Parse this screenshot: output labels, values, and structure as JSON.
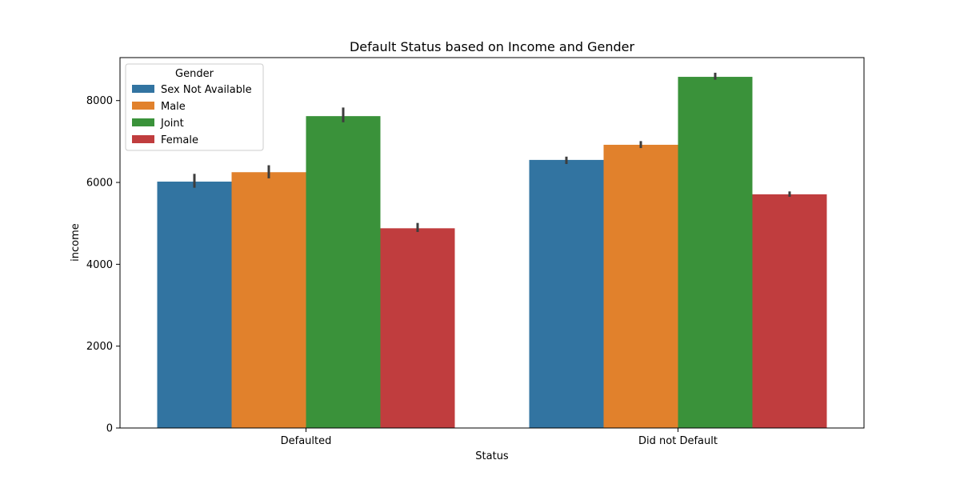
{
  "chart_data": {
    "type": "bar",
    "title": "Default Status based on Income and Gender",
    "xlabel": "Status",
    "ylabel": "income",
    "categories": [
      "Defaulted",
      "Did not Default"
    ],
    "ylim": [
      0,
      9050
    ],
    "yticks": [
      0,
      2000,
      4000,
      6000,
      8000
    ],
    "ytick_labels": [
      "0",
      "2000",
      "4000",
      "6000",
      "8000"
    ],
    "legend": {
      "title": "Gender",
      "placement": "top-left"
    },
    "series": [
      {
        "name": "Sex Not Available",
        "color": "#3274a1",
        "values": [
          6020,
          6550
        ],
        "ci_low": [
          5870,
          6450
        ],
        "ci_high": [
          6210,
          6630
        ]
      },
      {
        "name": "Male",
        "color": "#e1812c",
        "values": [
          6250,
          6920
        ],
        "ci_low": [
          6100,
          6840
        ],
        "ci_high": [
          6420,
          7010
        ]
      },
      {
        "name": "Joint",
        "color": "#3a923a",
        "values": [
          7620,
          8580
        ],
        "ci_low": [
          7470,
          8510
        ],
        "ci_high": [
          7830,
          8680
        ]
      },
      {
        "name": "Female",
        "color": "#c03d3e",
        "values": [
          4880,
          5710
        ],
        "ci_low": [
          4790,
          5650
        ],
        "ci_high": [
          5010,
          5780
        ]
      }
    ]
  }
}
